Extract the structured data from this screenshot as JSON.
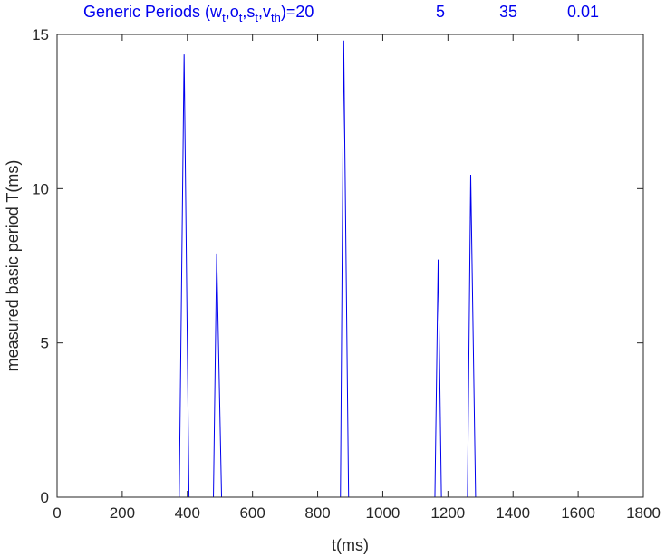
{
  "chart_data": {
    "type": "line",
    "title": {
      "prefix": "Generic Periods (w",
      "sub_w": "t",
      "sep1": ",o",
      "sub_o": "t",
      "sep2": ",s",
      "sub_s": "t",
      "sep3": ",v",
      "sub_v": "th",
      "suffix": ")=20",
      "values": [
        "5",
        "35",
        "0.01"
      ]
    },
    "xlabel": "t(ms)",
    "ylabel": "measured basic period T(ms)",
    "xlim": [
      0,
      1800
    ],
    "ylim": [
      0,
      15
    ],
    "xticks": [
      0,
      200,
      400,
      600,
      800,
      1000,
      1200,
      1400,
      1600,
      1800
    ],
    "yticks": [
      0,
      5,
      10,
      15
    ],
    "grid": false,
    "series": [
      {
        "color": "#0000ee",
        "x": [
          0,
          375,
          390,
          405,
          480,
          490,
          505,
          870,
          880,
          895,
          1160,
          1170,
          1180,
          1260,
          1270,
          1285,
          1600
        ],
        "y": [
          0,
          0,
          14.35,
          0,
          0,
          7.9,
          0,
          0,
          14.8,
          0,
          0,
          7.7,
          0,
          0,
          10.45,
          0,
          0
        ]
      }
    ]
  }
}
